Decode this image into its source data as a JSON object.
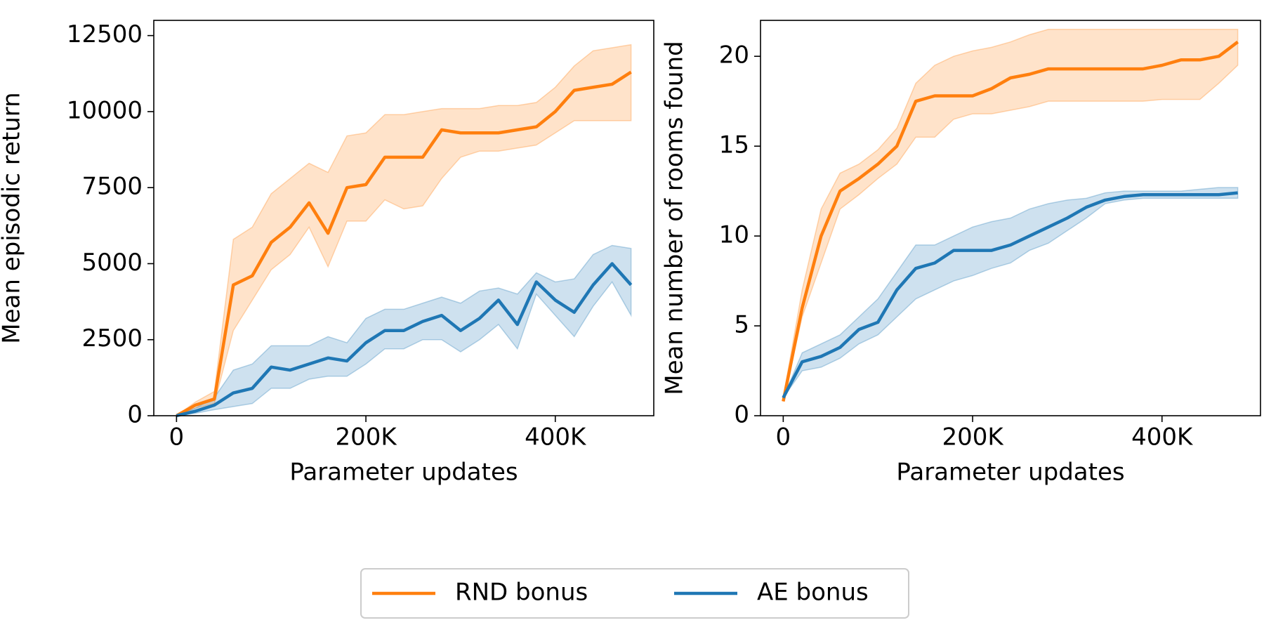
{
  "chart_data": [
    {
      "type": "line",
      "xlabel": "Parameter updates",
      "ylabel": "Mean episodic return",
      "x": [
        0,
        20000,
        40000,
        60000,
        80000,
        100000,
        120000,
        140000,
        160000,
        180000,
        200000,
        220000,
        240000,
        260000,
        280000,
        300000,
        320000,
        340000,
        360000,
        380000,
        400000,
        420000,
        440000,
        460000,
        480000
      ],
      "xlim": [
        -24000,
        504000
      ],
      "ylim": [
        0,
        13000
      ],
      "xticks": [
        0,
        {
          "value": 200000,
          "label": "200K"
        },
        {
          "value": 400000,
          "label": "400K"
        }
      ],
      "yticks": [
        0,
        2500,
        5000,
        7500,
        10000,
        12500
      ],
      "series": [
        {
          "name": "RND bonus",
          "color": "#ff7f0e",
          "values": [
            0,
            350,
            550,
            4300,
            4600,
            5700,
            6200,
            7000,
            6000,
            7500,
            7600,
            8500,
            8500,
            8500,
            9400,
            9300,
            9300,
            9300,
            9400,
            9500,
            10000,
            10700,
            10800,
            10900,
            11300
          ],
          "upper": [
            0,
            450,
            800,
            5800,
            6200,
            7300,
            7800,
            8300,
            8000,
            9200,
            9300,
            9900,
            9900,
            10000,
            10100,
            10100,
            10100,
            10200,
            10200,
            10300,
            10800,
            11500,
            12000,
            12100,
            12200
          ],
          "lower": [
            0,
            250,
            400,
            2800,
            3800,
            4800,
            5300,
            6200,
            4900,
            6400,
            6400,
            7100,
            6800,
            6900,
            7800,
            8500,
            8700,
            8700,
            8800,
            8900,
            9300,
            9700,
            9700,
            9700,
            9700
          ]
        },
        {
          "name": "AE bonus",
          "color": "#1f77b4",
          "values": [
            0,
            150,
            350,
            750,
            900,
            1600,
            1500,
            1700,
            1900,
            1800,
            2400,
            2800,
            2800,
            3100,
            3300,
            2800,
            3200,
            3800,
            3000,
            4400,
            3800,
            3400,
            4300,
            5000,
            4300
          ],
          "upper": [
            0,
            250,
            600,
            1500,
            1700,
            2300,
            2300,
            2300,
            2600,
            2400,
            3200,
            3500,
            3500,
            3700,
            3900,
            3700,
            4100,
            4200,
            4000,
            4700,
            4400,
            4500,
            5300,
            5600,
            5500
          ],
          "lower": [
            0,
            80,
            200,
            300,
            400,
            900,
            900,
            1200,
            1300,
            1300,
            1700,
            2200,
            2200,
            2500,
            2500,
            2100,
            2500,
            3000,
            2200,
            4000,
            3300,
            2600,
            3600,
            4400,
            3300
          ]
        }
      ]
    },
    {
      "type": "line",
      "xlabel": "Parameter updates",
      "ylabel": "Mean number of rooms found",
      "x": [
        0,
        20000,
        40000,
        60000,
        80000,
        100000,
        120000,
        140000,
        160000,
        180000,
        200000,
        220000,
        240000,
        260000,
        280000,
        300000,
        320000,
        340000,
        360000,
        380000,
        400000,
        420000,
        440000,
        460000,
        480000
      ],
      "xlim": [
        -24000,
        504000
      ],
      "ylim": [
        0,
        22
      ],
      "xticks": [
        0,
        {
          "value": 200000,
          "label": "200K"
        },
        {
          "value": 400000,
          "label": "400K"
        }
      ],
      "yticks": [
        0,
        5,
        10,
        15,
        20
      ],
      "series": [
        {
          "color": "#ff7f0e",
          "values": [
            0.8,
            6,
            10,
            12.5,
            13.2,
            14,
            15,
            17.5,
            17.8,
            17.8,
            17.8,
            18.2,
            18.8,
            19,
            19.3,
            19.3,
            19.3,
            19.3,
            19.3,
            19.3,
            19.5,
            19.8,
            19.8,
            20,
            20.8
          ],
          "upper": [
            1,
            7,
            11.5,
            13.5,
            14,
            14.8,
            16,
            18.5,
            19.5,
            20,
            20.3,
            20.5,
            20.8,
            21.2,
            21.5,
            21.5,
            21.5,
            21.5,
            21.5,
            21.5,
            21.5,
            21.5,
            21.5,
            21.5,
            21.5
          ],
          "lower": [
            0.8,
            5.5,
            8.5,
            11.5,
            12.3,
            13.2,
            14,
            15.5,
            15.5,
            16.5,
            16.8,
            16.8,
            17,
            17.2,
            17.5,
            17.5,
            17.5,
            17.5,
            17.5,
            17.5,
            17.6,
            17.6,
            17.6,
            18.5,
            19.5
          ]
        },
        {
          "color": "#1f77b4",
          "values": [
            1,
            3,
            3.3,
            3.8,
            4.8,
            5.2,
            7,
            8.2,
            8.5,
            9.2,
            9.2,
            9.2,
            9.5,
            10,
            10.5,
            11,
            11.6,
            12,
            12.2,
            12.3,
            12.3,
            12.3,
            12.3,
            12.3,
            12.4
          ],
          "upper": [
            1,
            3.5,
            4,
            4.5,
            5.5,
            6.5,
            8,
            9.5,
            9.5,
            10,
            10.5,
            10.8,
            11,
            11.5,
            11.8,
            12,
            12.1,
            12.4,
            12.5,
            12.5,
            12.5,
            12.5,
            12.6,
            12.7,
            12.7
          ],
          "lower": [
            1,
            2.5,
            2.7,
            3.2,
            4,
            4.5,
            5.5,
            6.5,
            7,
            7.5,
            7.8,
            8.2,
            8.5,
            9.2,
            9.6,
            10.3,
            11,
            11.8,
            12,
            12.1,
            12.1,
            12.1,
            12.1,
            12.1,
            12.1
          ]
        }
      ]
    }
  ]
}
